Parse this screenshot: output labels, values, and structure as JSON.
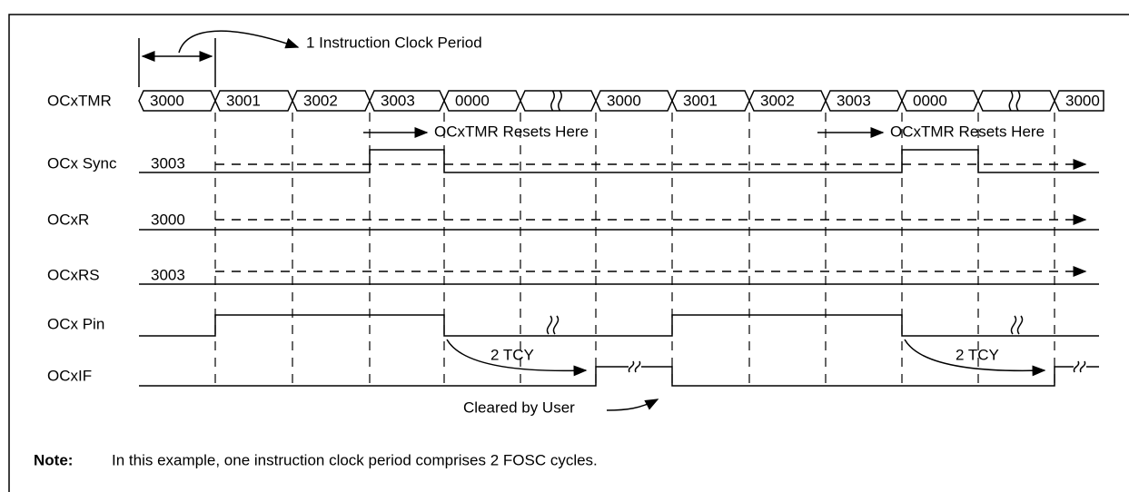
{
  "period_label": "1 Instruction Clock Period",
  "signals": [
    "OCxTMR",
    "OCx Sync",
    "OCxR",
    "OCxRS",
    "OCx Pin",
    "OCxIF"
  ],
  "tmr_values": [
    "3000",
    "3001",
    "3002",
    "3003",
    "0000",
    "3000",
    "3001",
    "3002",
    "3003",
    "0000",
    "3000"
  ],
  "reset_labels": [
    "OCxTMR Resets Here",
    "OCxTMR Resets Here"
  ],
  "register_values": [
    "3003",
    "3000",
    "3003"
  ],
  "delay_labels": [
    "2 TCY",
    "2 TCY"
  ],
  "cleared_label": "Cleared by User",
  "note": {
    "label": "Note:",
    "text": "In this example, one instruction clock period comprises 2 FOSC cycles."
  }
}
